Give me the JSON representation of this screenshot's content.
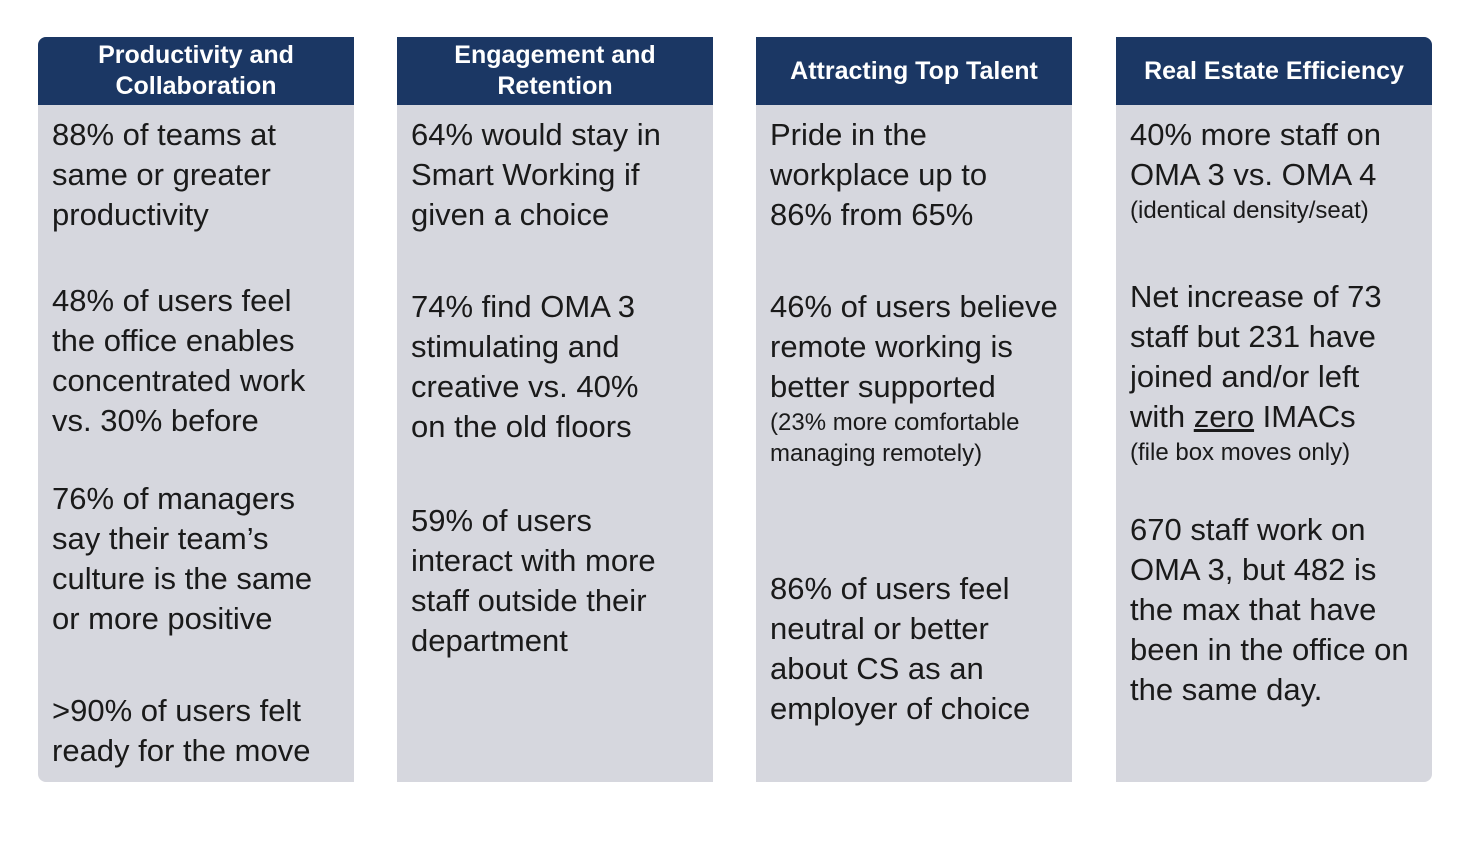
{
  "columns": [
    {
      "header": "Productivity and Collaboration",
      "stats": [
        {
          "text": "88% of teams at same or greater productivity"
        },
        {
          "text": "48% of users feel the office enables concentrated work vs. 30% before"
        },
        {
          "text": "76% of managers say their team’s culture is the same or more positive"
        },
        {
          "text": ">90% of users felt ready for the move"
        }
      ]
    },
    {
      "header": "Engagement and Retention",
      "stats": [
        {
          "text": "64% would stay in Smart Working if given a choice"
        },
        {
          "text": "74% find OMA 3 stimulating and creative vs. 40% on the old floors"
        },
        {
          "text": "59% of users interact with more staff outside their department"
        }
      ]
    },
    {
      "header": "Attracting Top Talent",
      "stats": [
        {
          "text": "Pride in the workplace up to 86% from 65%"
        },
        {
          "text": "46% of users believe remote working is better supported",
          "note": "(23% more comfortable managing remotely)"
        },
        {
          "text": "86% of users feel neutral or better about CS as an employer of choice"
        }
      ]
    },
    {
      "header": "Real Estate Efficiency",
      "stats": [
        {
          "text": "40% more staff on OMA 3 vs. OMA 4",
          "note": "(identical density/seat)"
        },
        {
          "text_before": "Net increase of 73 staff but 231 have joined and/or left with ",
          "text_emphasis": "zero",
          "text_after": " IMACs",
          "note": "(file box moves only)"
        },
        {
          "text": "670 staff work on OMA 3, but 482 is the max that have been in the office on the same day."
        }
      ]
    }
  ]
}
